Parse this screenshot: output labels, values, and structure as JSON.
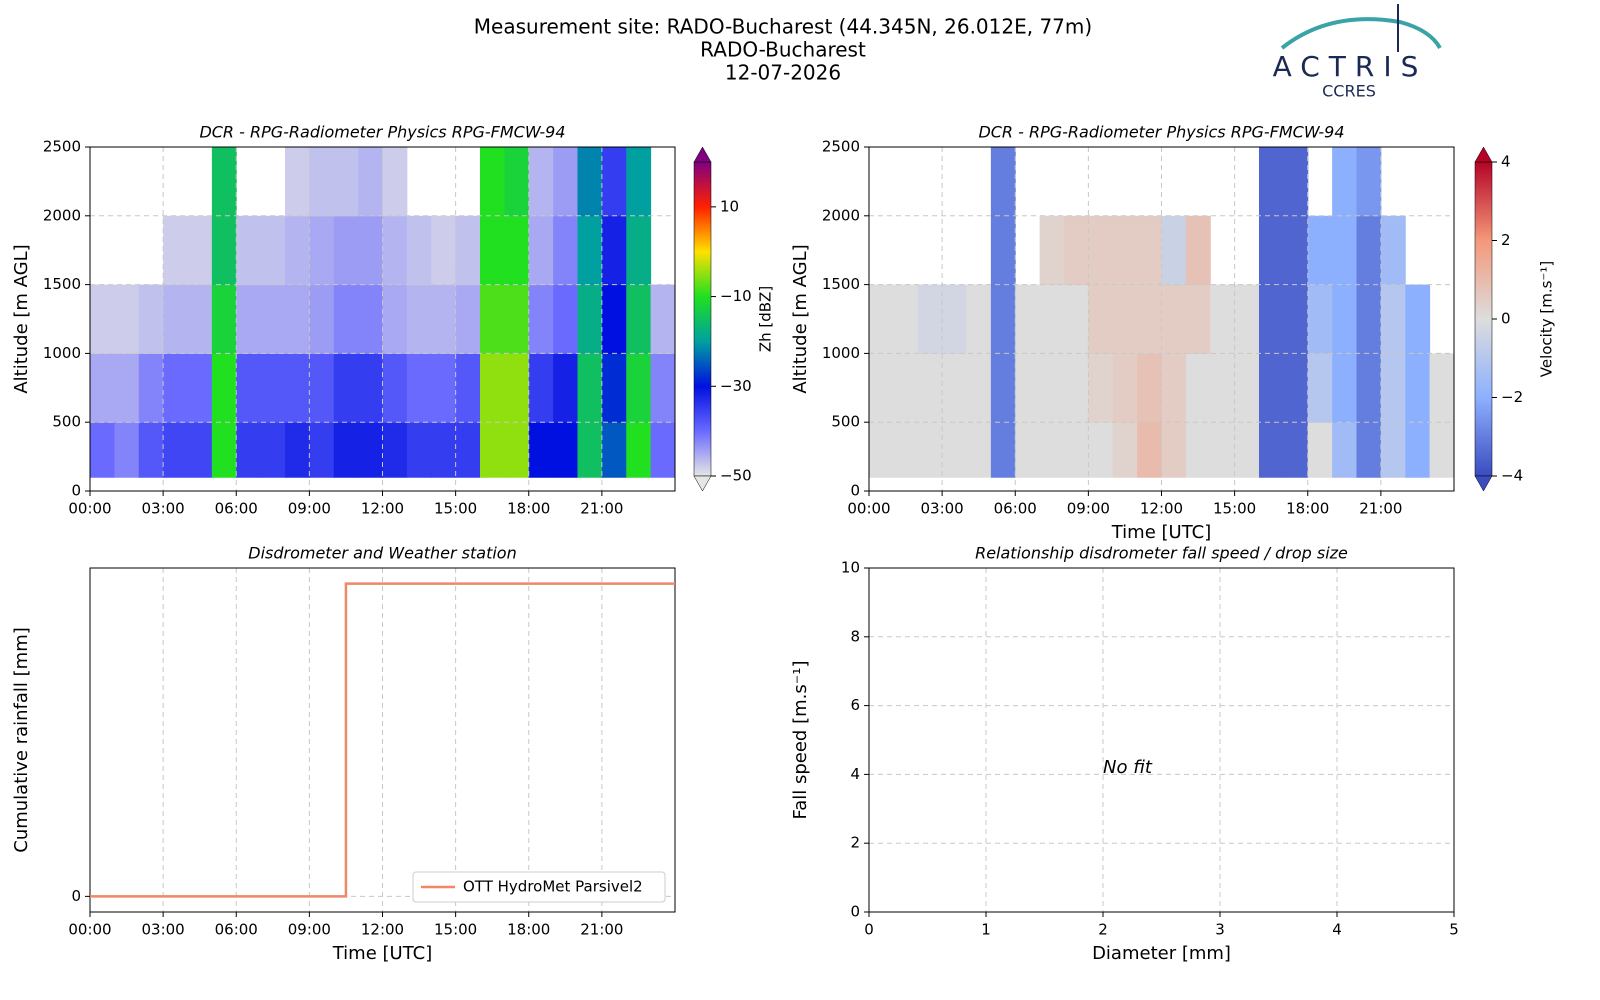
{
  "header": {
    "title": [
      "Measurement site: RADO-Bucharest (44.345N, 26.012E, 77m)",
      "RADO-Bucharest",
      "12-07-2026"
    ],
    "logo": [
      "ACTRIS",
      "CCRES"
    ]
  },
  "chart_data": [
    {
      "type": "heatmap",
      "title": "DCR - RPG-Radiometer Physics RPG-FMCW-94",
      "ylabel": "Altitude [m AGL]",
      "xlim": [
        0,
        24
      ],
      "xticks": [
        {
          "value": 0,
          "label": "00:00"
        },
        {
          "value": 3,
          "label": "03:00"
        },
        {
          "value": 6,
          "label": "06:00"
        },
        {
          "value": 9,
          "label": "09:00"
        },
        {
          "value": 12,
          "label": "12:00"
        },
        {
          "value": 15,
          "label": "15:00"
        },
        {
          "value": 18,
          "label": "18:00"
        },
        {
          "value": 21,
          "label": "21:00"
        }
      ],
      "ylim": [
        0,
        2500
      ],
      "yticks": [
        0,
        500,
        1000,
        1500,
        2000,
        2500
      ],
      "grid": true,
      "x_bins": [
        0,
        1,
        2,
        3,
        4,
        5,
        6,
        7,
        8,
        9,
        10,
        11,
        12,
        13,
        14,
        15,
        16,
        17,
        18,
        19,
        20,
        21,
        22,
        23,
        24
      ],
      "y_bins": [
        100,
        500,
        1000,
        1500,
        2000,
        2500
      ],
      "z": [
        [
          -40,
          -42,
          -38,
          -36,
          -36,
          -10,
          -35,
          -35,
          -33,
          -35,
          -32,
          -32,
          -33,
          -35,
          -35,
          -35,
          -5,
          -5,
          -30,
          -30,
          -15,
          -25,
          -10,
          -40
        ],
        [
          -45,
          -45,
          -42,
          -40,
          -40,
          -10,
          -38,
          -38,
          -38,
          -38,
          -35,
          -35,
          -38,
          -40,
          -40,
          -38,
          -5,
          -5,
          -35,
          -32,
          -15,
          -28,
          -12,
          -42
        ],
        [
          -48,
          -48,
          -47,
          -46,
          -46,
          -12,
          -45,
          -45,
          -45,
          -44,
          -42,
          -42,
          -45,
          -46,
          -46,
          -45,
          -8,
          -8,
          -42,
          -40,
          -18,
          -30,
          -15,
          -46
        ],
        [
          null,
          null,
          null,
          -48,
          -48,
          -15,
          -47,
          -47,
          -46,
          -45,
          -44,
          -44,
          -46,
          -47,
          -48,
          -47,
          -10,
          -10,
          -45,
          -42,
          -20,
          -32,
          -18,
          null
        ],
        [
          null,
          null,
          null,
          null,
          null,
          -15,
          null,
          null,
          -48,
          -47,
          -47,
          -46,
          -48,
          null,
          null,
          null,
          -10,
          -12,
          -46,
          -44,
          -22,
          -35,
          -20,
          null
        ]
      ],
      "zlim": [
        -50,
        20
      ],
      "zticks": [
        {
          "value": -50,
          "label": "−50"
        },
        {
          "value": -30,
          "label": "−30"
        },
        {
          "value": -10,
          "label": "−10"
        },
        10
      ],
      "colorbar_label": "Zh [dBZ]",
      "colorscale": [
        "#e6e6e6",
        "#6a6aff",
        "#0010e0",
        "#00a0a0",
        "#20e020",
        "#ffe000",
        "#ff2000",
        "#800080"
      ]
    },
    {
      "type": "heatmap",
      "title": "DCR - RPG-Radiometer Physics RPG-FMCW-94",
      "ylabel": "Altitude [m AGL]",
      "xlabel": "Time [UTC]",
      "xlim": [
        0,
        24
      ],
      "xticks": [
        {
          "value": 0,
          "label": "00:00"
        },
        {
          "value": 3,
          "label": "03:00"
        },
        {
          "value": 6,
          "label": "06:00"
        },
        {
          "value": 9,
          "label": "09:00"
        },
        {
          "value": 12,
          "label": "12:00"
        },
        {
          "value": 15,
          "label": "15:00"
        },
        {
          "value": 18,
          "label": "18:00"
        },
        {
          "value": 21,
          "label": "21:00"
        }
      ],
      "ylim": [
        0,
        2500
      ],
      "yticks": [
        0,
        500,
        1000,
        1500,
        2000,
        2500
      ],
      "grid": true,
      "x_bins": [
        0,
        1,
        2,
        3,
        4,
        5,
        6,
        7,
        8,
        9,
        10,
        11,
        12,
        13,
        14,
        15,
        16,
        17,
        18,
        19,
        20,
        21,
        22,
        23,
        24
      ],
      "y_bins": [
        100,
        500,
        1000,
        1500,
        2000,
        2500
      ],
      "z": [
        [
          0,
          0,
          0,
          0,
          0,
          -3,
          0,
          0,
          0,
          0,
          0.3,
          1,
          0.5,
          0,
          0,
          0,
          -3.5,
          -3.5,
          0,
          -1.5,
          -3,
          -1,
          -2,
          0
        ],
        [
          0,
          0,
          0,
          0,
          0,
          -3,
          0,
          0,
          0,
          0.3,
          0.5,
          0.8,
          0.5,
          0,
          0,
          0,
          -3.5,
          -3.5,
          -1,
          -2,
          -3,
          -1,
          -2,
          0
        ],
        [
          0,
          0,
          -0.3,
          -0.3,
          0,
          -3,
          0,
          0,
          0,
          0.5,
          0.5,
          0.5,
          0.5,
          0.5,
          0,
          0,
          -3.5,
          -3.5,
          -1.5,
          -2,
          -3,
          -1,
          -2,
          null
        ],
        [
          null,
          null,
          null,
          null,
          null,
          -3,
          null,
          0.3,
          0.5,
          0.5,
          0.5,
          0.5,
          -0.5,
          0.8,
          null,
          null,
          -3.5,
          -3.5,
          -2,
          -2,
          -3,
          -1.5,
          null,
          null
        ],
        [
          null,
          null,
          null,
          null,
          null,
          -3,
          null,
          null,
          null,
          null,
          null,
          null,
          null,
          null,
          null,
          null,
          -3.5,
          -3.5,
          null,
          -2,
          -2.5,
          null,
          null,
          null
        ]
      ],
      "zlim": [
        -4,
        4
      ],
      "zticks": [
        {
          "value": -4,
          "label": "−4"
        },
        {
          "value": -2,
          "label": "−2"
        },
        0,
        2,
        4
      ],
      "colorbar_label": "Velocity [m.s⁻¹]",
      "colorscale": [
        "#3b4cc0",
        "#8db0fe",
        "#dddddd",
        "#f4987a",
        "#b40426"
      ]
    },
    {
      "type": "line",
      "title": "Disdrometer and Weather station",
      "ylabel": "Cumulative rainfall [mm]",
      "xlabel": "Time [UTC]",
      "xlim": [
        0,
        24
      ],
      "xticks": [
        {
          "value": 0,
          "label": "00:00"
        },
        {
          "value": 3,
          "label": "03:00"
        },
        {
          "value": 6,
          "label": "06:00"
        },
        {
          "value": 9,
          "label": "09:00"
        },
        {
          "value": 12,
          "label": "12:00"
        },
        {
          "value": 15,
          "label": "15:00"
        },
        {
          "value": 18,
          "label": "18:00"
        },
        {
          "value": 21,
          "label": "21:00"
        }
      ],
      "ylim": [
        -0.05,
        1.05
      ],
      "yticks": [
        0
      ],
      "grid": true,
      "legend": "lower-right",
      "series": [
        {
          "name": "OTT HydroMet Parsivel2",
          "color": "#ee8866",
          "x": [
            0,
            10.5,
            10.5,
            24
          ],
          "values": [
            0,
            0,
            1,
            1
          ]
        }
      ]
    },
    {
      "type": "scatter",
      "title": "Relationship disdrometer fall speed / drop size",
      "ylabel": "Fall speed [m.s⁻¹]",
      "xlabel": "Diameter [mm]",
      "xlim": [
        0,
        5
      ],
      "xticks": [
        0,
        1,
        2,
        3,
        4,
        5
      ],
      "ylim": [
        0,
        10
      ],
      "yticks": [
        0,
        2,
        4,
        6,
        8,
        10
      ],
      "grid": true,
      "x": [],
      "y": [],
      "annotation": "No fit"
    }
  ]
}
